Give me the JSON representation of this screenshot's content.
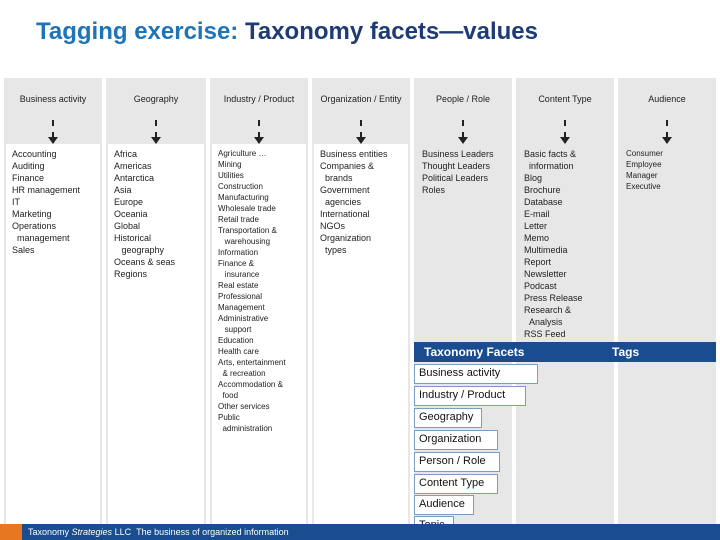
{
  "title": {
    "accent": "Tagging exercise:",
    "main": "Taxonomy facets—values"
  },
  "columns": [
    {
      "head": "Business activity",
      "items": [
        "Accounting",
        "Auditing",
        "Finance",
        "HR management",
        "IT",
        "Marketing",
        "Operations",
        "  management",
        "Sales"
      ]
    },
    {
      "head": "Geography",
      "items": [
        "Africa",
        "Americas",
        "Antarctica",
        "Asia",
        "Europe",
        "Oceania",
        "Global",
        "Historical",
        "   geography",
        "Oceans & seas",
        "Regions"
      ]
    },
    {
      "head": "Industry / Product",
      "items": [
        "Agriculture …",
        "Mining",
        "Utilities",
        "Construction",
        "Manufacturing",
        "Wholesale trade",
        "Retail trade",
        "Transportation &",
        "   warehousing",
        "Information",
        "Finance &",
        "   insurance",
        "Real estate",
        "Professional",
        "Management",
        "Administrative",
        "   support",
        "Education",
        "Health care",
        "Arts, entertainment",
        "  & recreation",
        "Accommodation &",
        "  food",
        "Other services",
        "Public",
        "  administration"
      ]
    },
    {
      "head": "Organization / Entity",
      "items": [
        "Business entities",
        "Companies &",
        "  brands",
        "Government",
        "  agencies",
        "International",
        "NGOs",
        "Organization",
        "  types"
      ]
    },
    {
      "head": "People / Role",
      "items": [
        "Business Leaders",
        "Thought Leaders",
        "Political Leaders",
        "Roles"
      ]
    },
    {
      "head": "Content Type",
      "items": [
        "Basic facts &",
        "  information",
        "Blog",
        "Brochure",
        "Database",
        "E-mail",
        "Letter",
        "Memo",
        "Multimedia",
        "Report",
        "Newsletter",
        "Podcast",
        "Press Release",
        "Research &",
        "  Analysis",
        "RSS Feed"
      ]
    },
    {
      "head": "Audience",
      "items": [
        "Consumer",
        "Employee",
        "Manager",
        "Executive"
      ]
    }
  ],
  "facets": {
    "header_left": "Taxonomy Facets",
    "header_right": "Tags",
    "items": [
      "Business activity",
      "Industry / Product",
      "Geography",
      "Organization",
      "Person / Role",
      "Content Type",
      "Audience",
      "Topic"
    ]
  },
  "footer": {
    "company_a": "Taxonomy ",
    "company_b": "Strategies",
    "company_c": " LLC",
    "tagline": "The business of organized information"
  }
}
